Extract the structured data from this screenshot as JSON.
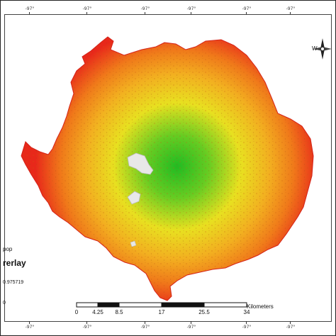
{
  "coordinates": {
    "top": [
      "-97°",
      "-97°",
      "-97°",
      "-97°",
      "-97°",
      "-97°"
    ],
    "bottom": [
      "-97°",
      "-97°",
      "-97°",
      "-97°",
      "-97°",
      "-97°"
    ]
  },
  "legend": {
    "field_fragment": "pop",
    "title_fragment": "rerlay",
    "range_fragment": "0.975719",
    "low_fragment": "0"
  },
  "compass": {
    "west_label": "W"
  },
  "scale_bar": {
    "labels": [
      "0",
      "4.25",
      "8.5",
      "17",
      "25.5",
      "34"
    ],
    "units": "Kilometers"
  },
  "colors": {
    "center": "#22bb22",
    "mid": "#e8e020",
    "outer": "#f07a1a",
    "edge": "#e8281a",
    "background": "#ffffff"
  }
}
